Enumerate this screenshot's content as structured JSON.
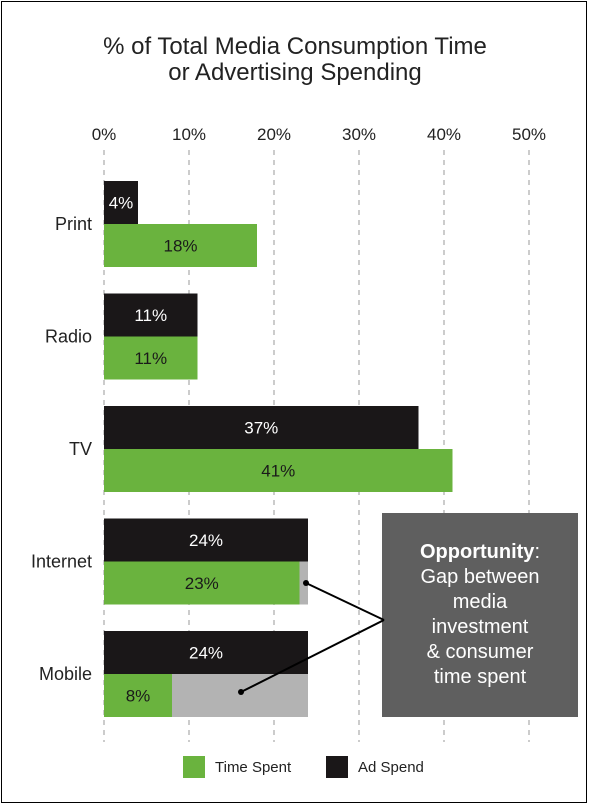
{
  "chart_data": {
    "type": "bar",
    "orientation": "horizontal",
    "title_line1": "% of Total Media Consumption Time",
    "title_line2": "or Advertising Spending",
    "categories": [
      "Print",
      "Radio",
      "TV",
      "Internet",
      "Mobile"
    ],
    "series": [
      {
        "name": "Ad Spend",
        "color": "#1a1718",
        "values": [
          4,
          11,
          37,
          24,
          24
        ],
        "labels": [
          "4%",
          "11%",
          "37%",
          "24%",
          "24%"
        ]
      },
      {
        "name": "Time Spent",
        "color": "#6ab33e",
        "values": [
          18,
          11,
          41,
          23,
          8
        ],
        "labels": [
          "18%",
          "11%",
          "41%",
          "23%",
          "8%"
        ]
      }
    ],
    "gap_color": "#b3b3b3",
    "xlim": [
      0,
      50
    ],
    "ticks": [
      0,
      10,
      20,
      30,
      40,
      50
    ],
    "tick_labels": [
      "0%",
      "10%",
      "20%",
      "30%",
      "40%",
      "50%"
    ],
    "grid": true,
    "legend": {
      "position": "bottom",
      "items": [
        {
          "label": "Time Spent",
          "color": "#6ab33e"
        },
        {
          "label": "Ad Spend",
          "color": "#1a1718"
        }
      ]
    }
  },
  "callout": {
    "heading": "Opportunity",
    "heading_suffix": ":",
    "lines": [
      "Gap between",
      "media",
      "investment",
      "& consumer",
      "time spent"
    ],
    "bg_color": "#5f5f5f"
  }
}
